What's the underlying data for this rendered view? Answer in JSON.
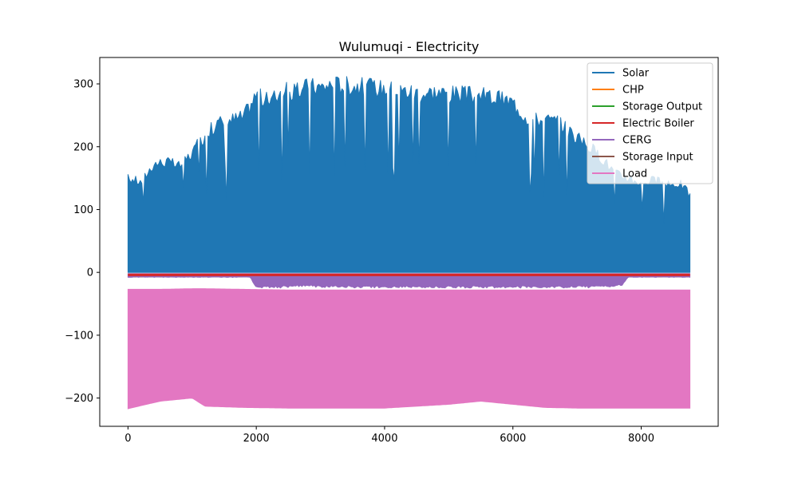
{
  "chart_data": {
    "type": "line",
    "title": "Wulumuqi - Electricity",
    "xlabel": "",
    "ylabel": "",
    "xlim": [
      -440,
      9200
    ],
    "ylim": [
      -245,
      342
    ],
    "x_ticks": [
      0,
      2000,
      4000,
      6000,
      8000
    ],
    "x_tick_labels": [
      "0",
      "2000",
      "4000",
      "6000",
      "8000"
    ],
    "y_ticks": [
      300,
      200,
      100,
      0,
      -100,
      -200
    ],
    "y_tick_labels": [
      "300",
      "200",
      "100",
      "0",
      "−100",
      "−200"
    ],
    "grid": false,
    "legend_position": "top-right",
    "x_range": [
      0,
      8760
    ],
    "series": [
      {
        "name": "Solar",
        "color": "#1f77b4",
        "kind": "daily-upper-envelope",
        "x": [
          0,
          100,
          200,
          400,
          600,
          800,
          1000,
          1200,
          1400,
          1600,
          1800,
          2000,
          2200,
          2400,
          2600,
          2800,
          3000,
          3200,
          3400,
          3600,
          3800,
          4000,
          4200,
          4400,
          4600,
          4800,
          5000,
          5200,
          5400,
          5600,
          5800,
          6000,
          6200,
          6400,
          6600,
          6800,
          7000,
          7200,
          7400,
          7600,
          7800,
          8000,
          8200,
          8400,
          8600,
          8760
        ],
        "y": [
          157,
          155,
          150,
          182,
          185,
          178,
          200,
          230,
          250,
          255,
          260,
          298,
          285,
          305,
          300,
          312,
          310,
          315,
          314,
          312,
          310,
          308,
          305,
          303,
          300,
          302,
          299,
          298,
          296,
          295,
          290,
          285,
          260,
          255,
          255,
          245,
          225,
          210,
          190,
          165,
          158,
          150,
          155,
          145,
          150,
          130
        ],
        "y_floor": 0
      },
      {
        "name": "CHP",
        "color": "#ff7f0e",
        "kind": "constant",
        "y": 5
      },
      {
        "name": "Storage Output",
        "color": "#2ca02c",
        "kind": "band",
        "y_low": 1,
        "y_high": 5
      },
      {
        "name": "Electric Boiler",
        "color": "#d62728",
        "kind": "band",
        "y_low": -6,
        "y_high": -2
      },
      {
        "name": "CERG",
        "color": "#9467bd",
        "kind": "daily-lower-envelope",
        "x": [
          0,
          1000,
          1900,
          2000,
          2400,
          2800,
          2900,
          3500,
          4000,
          4500,
          5000,
          5500,
          6000,
          6500,
          7000,
          7500,
          7700,
          7800,
          8760
        ],
        "y": [
          -8,
          -8,
          -8,
          -25,
          -25,
          -22,
          -24,
          -25,
          -25,
          -25,
          -25,
          -25,
          -25,
          -25,
          -25,
          -24,
          -22,
          -8,
          -8
        ],
        "y_ceiling": -2
      },
      {
        "name": "Storage Input",
        "color": "#8c564b",
        "kind": "band",
        "y_low": -8,
        "y_high": -2
      },
      {
        "name": "Load",
        "color": "#e377c2",
        "kind": "band-envelope",
        "x": [
          0,
          500,
          1000,
          1200,
          1800,
          2500,
          3000,
          3500,
          4000,
          4500,
          5000,
          5500,
          6000,
          6500,
          7000,
          7500,
          8000,
          8500,
          8760
        ],
        "y_high": [
          -27,
          -27,
          -26,
          -26,
          -27,
          -28,
          -28,
          -28,
          -28,
          -28,
          -28,
          -28,
          -28,
          -28,
          -28,
          -28,
          -28,
          -28,
          -28
        ],
        "y_low": [
          -217,
          -205,
          -200,
          -213,
          -215,
          -216,
          -216,
          -216,
          -216,
          -213,
          -210,
          -205,
          -210,
          -215,
          -216,
          -216,
          -216,
          -216,
          -216
        ]
      }
    ]
  }
}
